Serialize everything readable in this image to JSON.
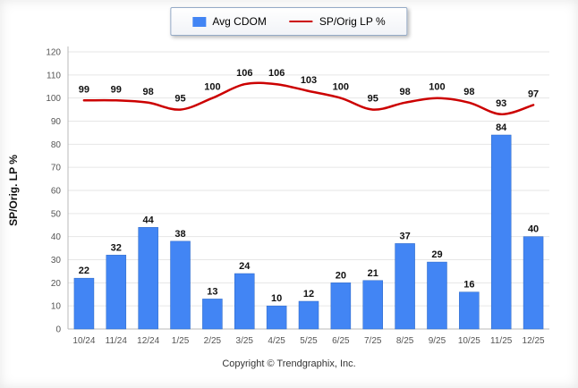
{
  "legend": {
    "series1_label": "Avg CDOM",
    "series2_label": "SP/Orig LP %"
  },
  "footer": {
    "copyright": "Copyright © Trendgraphix, Inc."
  },
  "chart_data": {
    "type": "bar",
    "subtype": "bar+line combo",
    "categories": [
      "10/24",
      "11/24",
      "12/24",
      "1/25",
      "2/25",
      "3/25",
      "4/25",
      "5/25",
      "6/25",
      "7/25",
      "8/25",
      "9/25",
      "10/25",
      "11/25",
      "12/25"
    ],
    "series": [
      {
        "name": "Avg CDOM",
        "type": "bar",
        "color": "#4285f4",
        "values": [
          22,
          32,
          44,
          38,
          13,
          24,
          10,
          12,
          20,
          21,
          37,
          29,
          16,
          84,
          40
        ]
      },
      {
        "name": "SP/Orig LP %",
        "type": "line",
        "color": "#cc0000",
        "values": [
          99,
          99,
          98,
          95,
          100,
          106,
          106,
          103,
          100,
          95,
          98,
          100,
          98,
          93,
          97
        ]
      }
    ],
    "title": "",
    "xlabel": "",
    "ylabel": "SP/Orig. LP %",
    "ylim": [
      0,
      120
    ],
    "ytick_step": 10,
    "grid": true,
    "legend_position": "top-center",
    "colors": {
      "bar_fill": "#4285f4",
      "bar_edge": "#2b66c4",
      "line_stroke": "#cc0000",
      "gridline": "#e6e6e6",
      "axis": "#b8b8b8",
      "tick_text": "#555555",
      "data_label": "#111111"
    }
  }
}
